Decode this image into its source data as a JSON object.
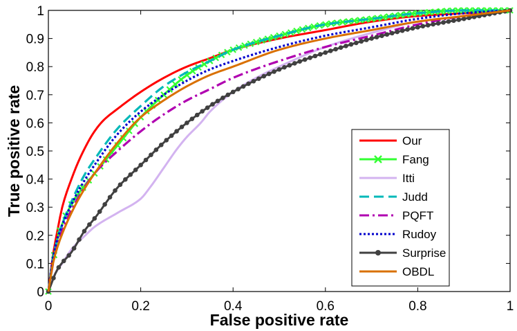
{
  "chart_data": {
    "type": "line",
    "title": "",
    "xlabel": "False positive rate",
    "ylabel": "True positive rate",
    "xlim": [
      0,
      1
    ],
    "ylim": [
      0,
      1
    ],
    "xticks": [
      0,
      0.2,
      0.4,
      0.6,
      0.8,
      1
    ],
    "xtick_labels": [
      "0",
      "0.2",
      "0.4",
      "0.6",
      "0.8",
      "1"
    ],
    "yticks": [
      0,
      0.1,
      0.2,
      0.3,
      0.4,
      0.5,
      0.6,
      0.7,
      0.8,
      0.9,
      1
    ],
    "ytick_labels": [
      "0",
      "0.1",
      "0.2",
      "0.3",
      "0.4",
      "0.5",
      "0.6",
      "0.7",
      "0.8",
      "0.9",
      "1"
    ],
    "grid": false,
    "legend_position": "bottom-right",
    "series": [
      {
        "name": "Our",
        "color": "#ff0000",
        "style": "solid",
        "marker": "none",
        "x": [
          0,
          0.01,
          0.02,
          0.03,
          0.05,
          0.07,
          0.1,
          0.12,
          0.15,
          0.2,
          0.25,
          0.3,
          0.35,
          0.4,
          0.5,
          0.6,
          0.7,
          0.8,
          0.9,
          1
        ],
        "y": [
          0,
          0.13,
          0.22,
          0.3,
          0.4,
          0.48,
          0.57,
          0.61,
          0.65,
          0.71,
          0.76,
          0.8,
          0.83,
          0.86,
          0.9,
          0.93,
          0.96,
          0.98,
          0.99,
          1
        ]
      },
      {
        "name": "Fang",
        "color": "#33ff33",
        "style": "solid",
        "marker": "x",
        "x": [
          0,
          0.02,
          0.05,
          0.08,
          0.1,
          0.15,
          0.2,
          0.25,
          0.3,
          0.35,
          0.4,
          0.5,
          0.6,
          0.7,
          0.8,
          0.9,
          1
        ],
        "y": [
          0,
          0.19,
          0.31,
          0.38,
          0.42,
          0.52,
          0.62,
          0.7,
          0.77,
          0.82,
          0.86,
          0.91,
          0.95,
          0.97,
          0.99,
          1,
          1
        ]
      },
      {
        "name": "Itti",
        "color": "#d3b3f0",
        "style": "solid",
        "marker": "none",
        "x": [
          0,
          0.01,
          0.03,
          0.05,
          0.08,
          0.1,
          0.15,
          0.2,
          0.22,
          0.25,
          0.28,
          0.3,
          0.33,
          0.35,
          0.4,
          0.45,
          0.5,
          0.6,
          0.7,
          0.8,
          0.9,
          1
        ],
        "y": [
          0,
          0.05,
          0.1,
          0.15,
          0.2,
          0.23,
          0.28,
          0.33,
          0.37,
          0.44,
          0.51,
          0.55,
          0.6,
          0.64,
          0.71,
          0.76,
          0.8,
          0.87,
          0.92,
          0.96,
          0.98,
          1
        ]
      },
      {
        "name": "Judd",
        "color": "#00b8b8",
        "style": "dashed",
        "marker": "none",
        "x": [
          0,
          0.01,
          0.02,
          0.05,
          0.08,
          0.1,
          0.15,
          0.2,
          0.25,
          0.3,
          0.35,
          0.4,
          0.5,
          0.6,
          0.7,
          0.8,
          0.9,
          1
        ],
        "y": [
          0,
          0.12,
          0.19,
          0.32,
          0.42,
          0.47,
          0.58,
          0.66,
          0.73,
          0.78,
          0.82,
          0.86,
          0.91,
          0.95,
          0.97,
          0.99,
          1,
          1
        ]
      },
      {
        "name": "PQFT",
        "color": "#b000b0",
        "style": "dashdot",
        "marker": "none",
        "x": [
          0,
          0.01,
          0.02,
          0.05,
          0.1,
          0.15,
          0.2,
          0.25,
          0.3,
          0.35,
          0.4,
          0.5,
          0.6,
          0.7,
          0.8,
          0.9,
          1
        ],
        "y": [
          0,
          0.1,
          0.17,
          0.29,
          0.42,
          0.5,
          0.57,
          0.63,
          0.68,
          0.72,
          0.76,
          0.82,
          0.87,
          0.91,
          0.95,
          0.98,
          1
        ]
      },
      {
        "name": "Rudoy",
        "color": "#0000cc",
        "style": "dotted",
        "marker": "none",
        "x": [
          0,
          0.01,
          0.02,
          0.05,
          0.08,
          0.1,
          0.15,
          0.2,
          0.25,
          0.3,
          0.35,
          0.4,
          0.5,
          0.6,
          0.7,
          0.8,
          0.9,
          1
        ],
        "y": [
          0,
          0.12,
          0.19,
          0.31,
          0.4,
          0.45,
          0.56,
          0.64,
          0.7,
          0.75,
          0.79,
          0.82,
          0.87,
          0.91,
          0.94,
          0.97,
          0.99,
          1
        ]
      },
      {
        "name": "Surprise",
        "color": "#404040",
        "style": "solid",
        "marker": "dot",
        "x": [
          0,
          0.02,
          0.05,
          0.08,
          0.1,
          0.15,
          0.2,
          0.25,
          0.3,
          0.35,
          0.4,
          0.5,
          0.6,
          0.7,
          0.8,
          0.9,
          1
        ],
        "y": [
          0,
          0.08,
          0.14,
          0.22,
          0.26,
          0.37,
          0.45,
          0.53,
          0.6,
          0.66,
          0.71,
          0.79,
          0.85,
          0.9,
          0.94,
          0.97,
          1
        ]
      },
      {
        "name": "OBDL",
        "color": "#d97000",
        "style": "solid",
        "marker": "none",
        "x": [
          0,
          0.01,
          0.02,
          0.05,
          0.08,
          0.1,
          0.15,
          0.2,
          0.25,
          0.3,
          0.35,
          0.4,
          0.5,
          0.6,
          0.7,
          0.8,
          0.9,
          1
        ],
        "y": [
          0,
          0.1,
          0.16,
          0.28,
          0.37,
          0.42,
          0.53,
          0.62,
          0.68,
          0.73,
          0.77,
          0.8,
          0.86,
          0.9,
          0.93,
          0.96,
          0.98,
          1
        ]
      }
    ]
  }
}
